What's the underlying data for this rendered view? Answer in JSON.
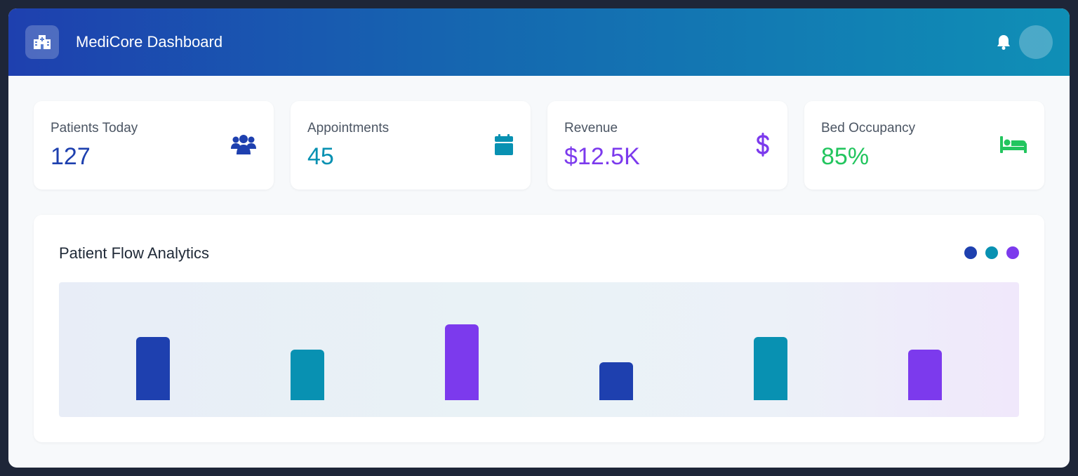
{
  "header": {
    "title": "MediCore Dashboard",
    "logo_icon": "hospital-icon",
    "notification_icon": "bell-icon"
  },
  "stats": [
    {
      "label": "Patients Today",
      "value": "127",
      "icon": "users-icon",
      "color": "#1e40af"
    },
    {
      "label": "Appointments",
      "value": "45",
      "icon": "calendar-icon",
      "color": "#0891b2"
    },
    {
      "label": "Revenue",
      "value": "$12.5K",
      "icon": "dollar-icon",
      "color": "#7c3aed"
    },
    {
      "label": "Bed Occupancy",
      "value": "85%",
      "icon": "bed-icon",
      "color": "#22c55e"
    }
  ],
  "panel": {
    "title": "Patient Flow Analytics",
    "legend_colors": [
      "#1e40af",
      "#0891b2",
      "#7c3aed"
    ]
  },
  "chart_data": {
    "type": "bar",
    "categories": [
      "",
      "",
      "",
      "",
      "",
      ""
    ],
    "values": [
      60,
      48,
      72,
      36,
      60,
      48
    ],
    "colors": [
      "#1e40af",
      "#0891b2",
      "#7c3aed",
      "#1e40af",
      "#0891b2",
      "#7c3aed"
    ],
    "ylim": [
      0,
      96
    ],
    "grid": false,
    "title": "",
    "xlabel": "",
    "ylabel": ""
  }
}
